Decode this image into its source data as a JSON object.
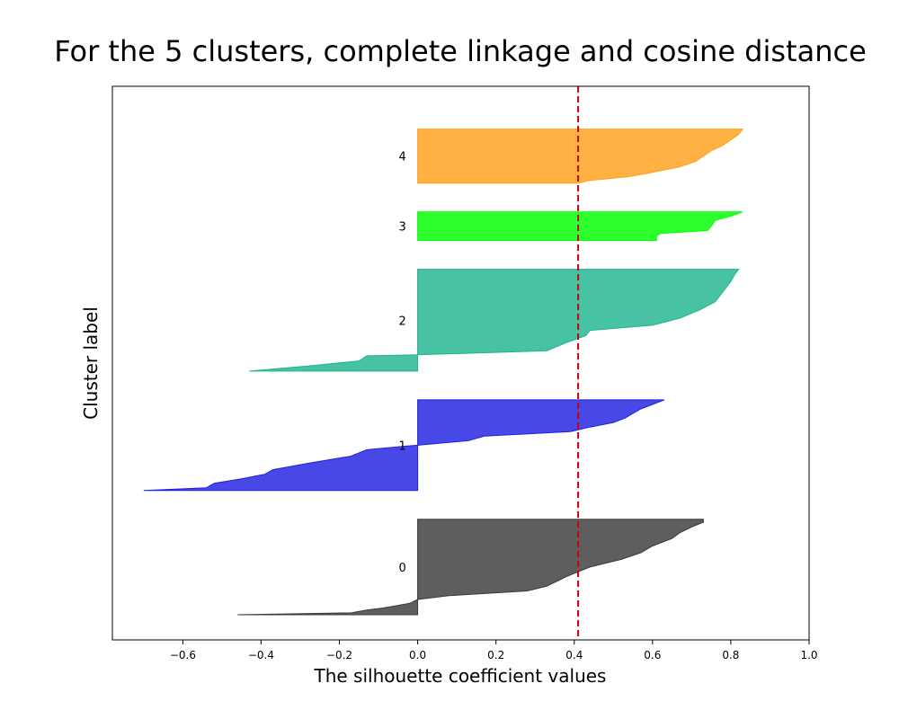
{
  "chart_data": {
    "type": "silhouette",
    "title": "For the 5 clusters, complete linkage and cosine distance",
    "xlabel": "The silhouette coefficient values",
    "ylabel": "Cluster label",
    "xlim": [
      -0.78,
      1.0
    ],
    "xticks": [
      "−0.6",
      "−0.4",
      "−0.2",
      "0.0",
      "0.2",
      "0.4",
      "0.6",
      "0.8",
      "1.0"
    ],
    "xtick_values": [
      -0.6,
      -0.4,
      -0.2,
      0.0,
      0.2,
      0.4,
      0.6,
      0.8,
      1.0
    ],
    "average_silhouette": 0.41,
    "average_line_color": "#cc0000",
    "grid": false,
    "clusters": [
      {
        "label": "0",
        "color": "#3a3a3a",
        "size": 60,
        "max_value": 0.73,
        "min_value": -0.46,
        "profile": [
          [
            0.0,
            -0.46
          ],
          [
            0.02,
            -0.17
          ],
          [
            0.05,
            -0.13
          ],
          [
            0.07,
            -0.09
          ],
          [
            0.09,
            -0.06
          ],
          [
            0.12,
            -0.02
          ],
          [
            0.16,
            0.0
          ],
          [
            0.2,
            0.08
          ],
          [
            0.25,
            0.28
          ],
          [
            0.3,
            0.33
          ],
          [
            0.4,
            0.38
          ],
          [
            0.5,
            0.44
          ],
          [
            0.58,
            0.52
          ],
          [
            0.65,
            0.57
          ],
          [
            0.72,
            0.6
          ],
          [
            0.8,
            0.65
          ],
          [
            0.86,
            0.67
          ],
          [
            0.92,
            0.7
          ],
          [
            0.97,
            0.73
          ],
          [
            1.0,
            0.73
          ]
        ]
      },
      {
        "label": "1",
        "color": "#2020e0",
        "size": 57,
        "max_value": 0.63,
        "min_value": -0.7,
        "profile": [
          [
            0.0,
            -0.7
          ],
          [
            0.03,
            -0.54
          ],
          [
            0.08,
            -0.52
          ],
          [
            0.13,
            -0.45
          ],
          [
            0.18,
            -0.39
          ],
          [
            0.23,
            -0.37
          ],
          [
            0.3,
            -0.28
          ],
          [
            0.38,
            -0.17
          ],
          [
            0.45,
            -0.13
          ],
          [
            0.49,
            -0.03
          ],
          [
            0.5,
            0.0
          ],
          [
            0.55,
            0.13
          ],
          [
            0.6,
            0.17
          ],
          [
            0.65,
            0.39
          ],
          [
            0.7,
            0.44
          ],
          [
            0.75,
            0.5
          ],
          [
            0.8,
            0.53
          ],
          [
            0.85,
            0.55
          ],
          [
            0.9,
            0.57
          ],
          [
            0.95,
            0.6
          ],
          [
            1.0,
            0.63
          ]
        ]
      },
      {
        "label": "2",
        "color": "#1fb58f",
        "size": 64,
        "max_value": 0.82,
        "min_value": -0.43,
        "profile": [
          [
            0.0,
            -0.43
          ],
          [
            0.05,
            -0.28
          ],
          [
            0.1,
            -0.15
          ],
          [
            0.15,
            -0.13
          ],
          [
            0.16,
            0.0
          ],
          [
            0.2,
            0.33
          ],
          [
            0.28,
            0.38
          ],
          [
            0.35,
            0.43
          ],
          [
            0.4,
            0.44
          ],
          [
            0.45,
            0.6
          ],
          [
            0.52,
            0.67
          ],
          [
            0.6,
            0.72
          ],
          [
            0.68,
            0.76
          ],
          [
            0.78,
            0.78
          ],
          [
            0.88,
            0.8
          ],
          [
            0.95,
            0.81
          ],
          [
            1.0,
            0.82
          ]
        ]
      },
      {
        "label": "3",
        "color": "#00ff00",
        "size": 18,
        "max_value": 0.83,
        "min_value": 0.61,
        "profile": [
          [
            0.0,
            0.61
          ],
          [
            0.15,
            0.61
          ],
          [
            0.25,
            0.62
          ],
          [
            0.35,
            0.74
          ],
          [
            0.5,
            0.75
          ],
          [
            0.7,
            0.76
          ],
          [
            0.85,
            0.8
          ],
          [
            1.0,
            0.83
          ]
        ]
      },
      {
        "label": "4",
        "color": "#ffa01a",
        "size": 34,
        "max_value": 0.83,
        "min_value": 0.41,
        "profile": [
          [
            0.0,
            0.41
          ],
          [
            0.05,
            0.44
          ],
          [
            0.12,
            0.54
          ],
          [
            0.2,
            0.6
          ],
          [
            0.3,
            0.67
          ],
          [
            0.4,
            0.71
          ],
          [
            0.5,
            0.73
          ],
          [
            0.6,
            0.75
          ],
          [
            0.7,
            0.78
          ],
          [
            0.8,
            0.8
          ],
          [
            0.9,
            0.82
          ],
          [
            1.0,
            0.83
          ]
        ]
      }
    ]
  }
}
